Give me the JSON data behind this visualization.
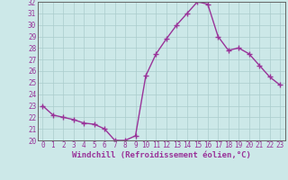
{
  "x": [
    0,
    1,
    2,
    3,
    4,
    5,
    6,
    7,
    8,
    9,
    10,
    11,
    12,
    13,
    14,
    15,
    16,
    17,
    18,
    19,
    20,
    21,
    22,
    23
  ],
  "y": [
    23.0,
    22.2,
    22.0,
    21.8,
    21.5,
    21.4,
    21.0,
    20.0,
    20.0,
    20.4,
    25.6,
    27.5,
    28.8,
    30.0,
    31.0,
    32.0,
    31.8,
    29.0,
    27.8,
    28.0,
    27.5,
    26.5,
    25.5,
    24.8
  ],
  "line_color": "#993399",
  "marker": "+",
  "marker_size": 4,
  "linewidth": 1.0,
  "xlabel": "Windchill (Refroidissement éolien,°C)",
  "xlim": [
    -0.5,
    23.5
  ],
  "ylim": [
    20,
    32
  ],
  "yticks": [
    20,
    21,
    22,
    23,
    24,
    25,
    26,
    27,
    28,
    29,
    30,
    31,
    32
  ],
  "xticks": [
    0,
    1,
    2,
    3,
    4,
    5,
    6,
    7,
    8,
    9,
    10,
    11,
    12,
    13,
    14,
    15,
    16,
    17,
    18,
    19,
    20,
    21,
    22,
    23
  ],
  "bg_color": "#cce8e8",
  "grid_color": "#aacccc",
  "line_purple": "#993399",
  "xlabel_fontsize": 6.5,
  "tick_fontsize": 5.5
}
